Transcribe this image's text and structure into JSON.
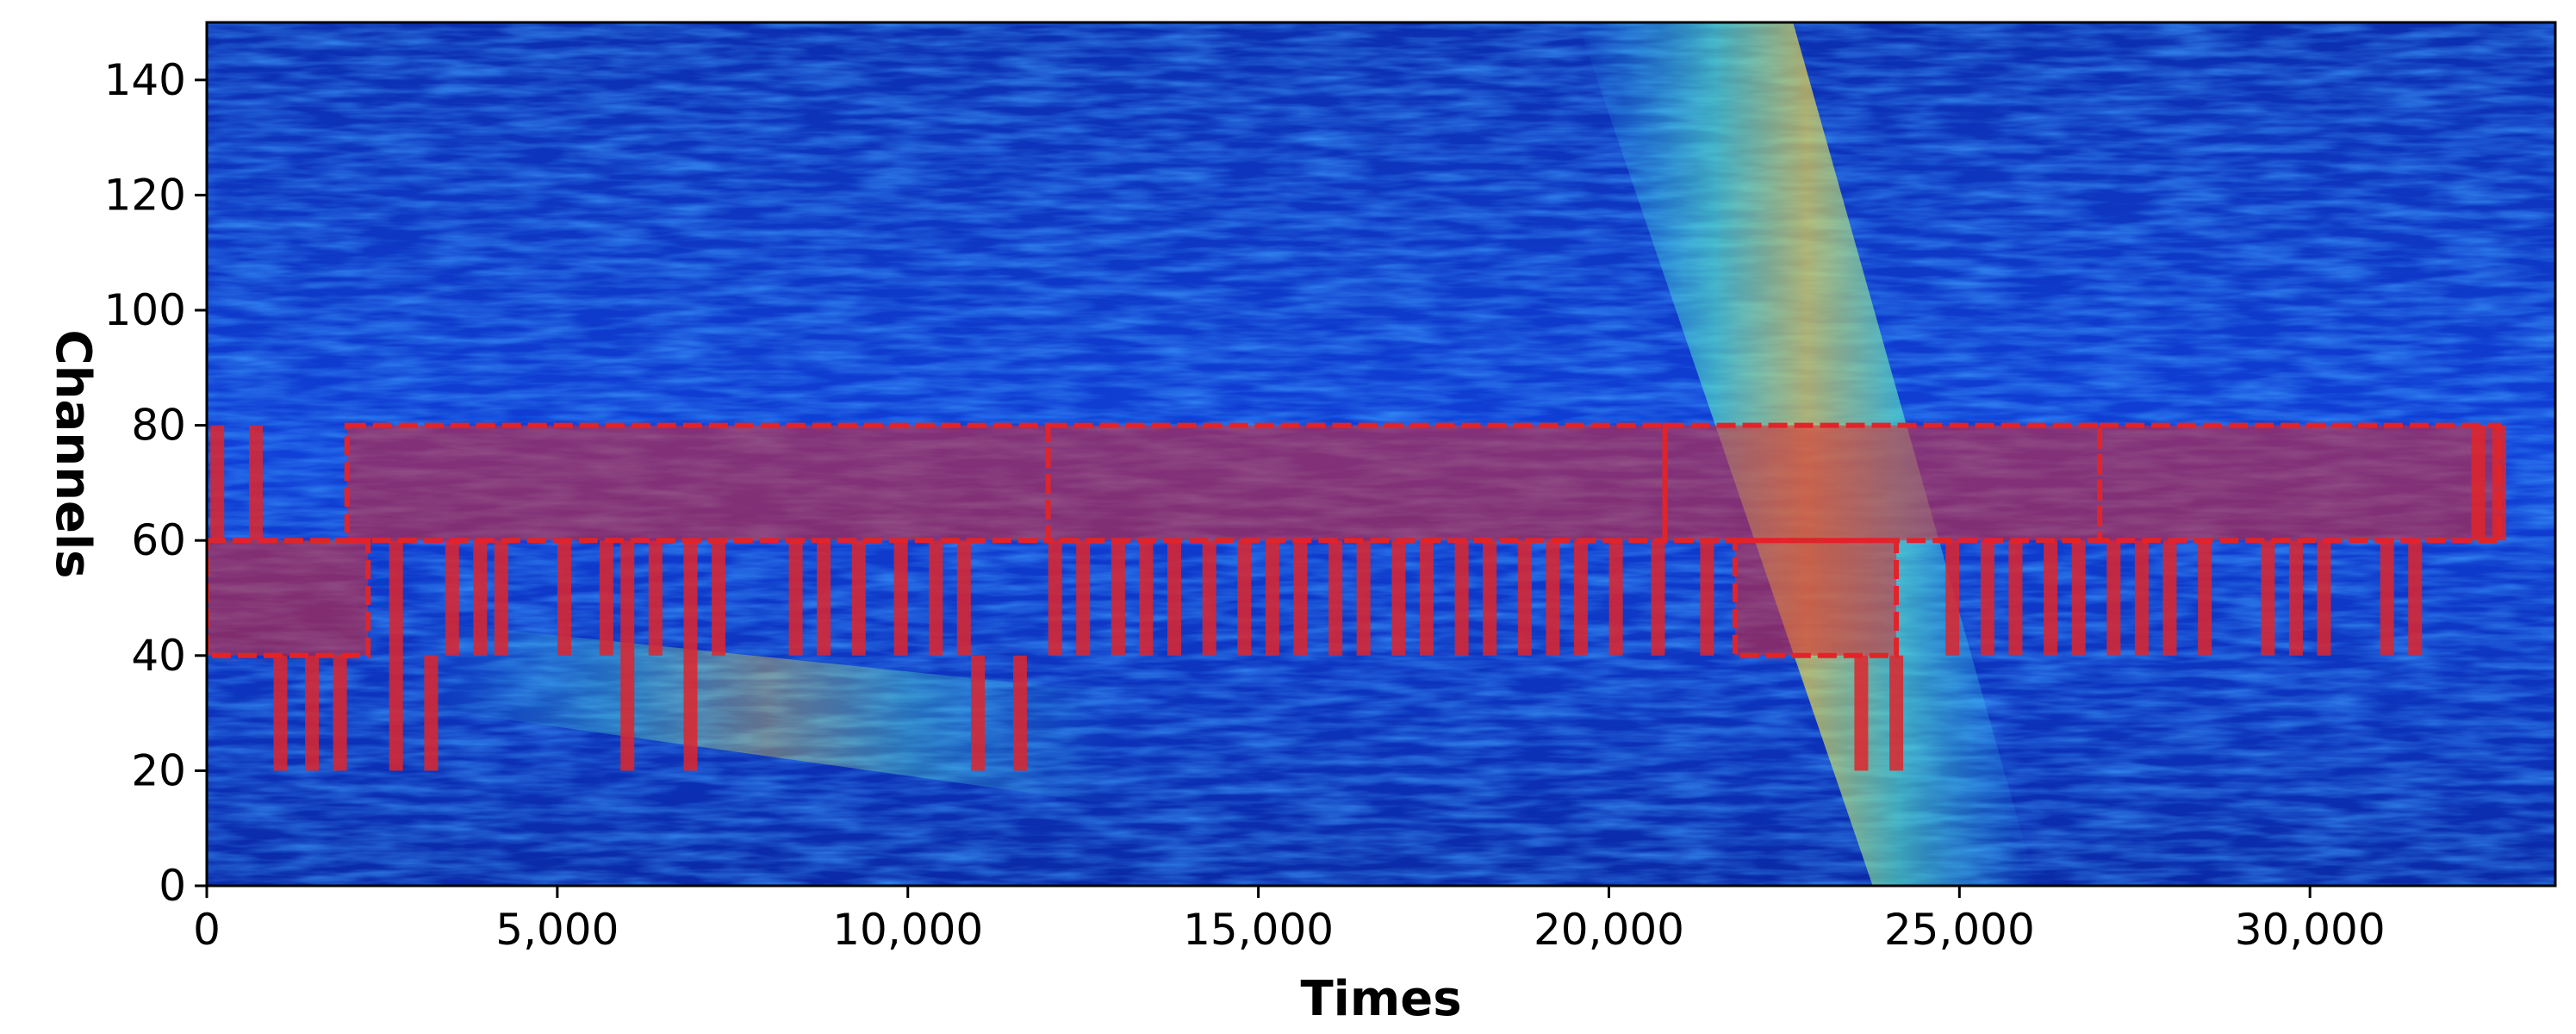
{
  "chart_data": {
    "type": "heatmap",
    "title": "",
    "xlabel": "Times",
    "ylabel": "Channels",
    "xlim": [
      0,
      33500
    ],
    "ylim": [
      0,
      150
    ],
    "x_ticks": [
      0,
      5000,
      10000,
      15000,
      20000,
      25000,
      30000
    ],
    "x_tick_labels": [
      "0",
      "5,000",
      "10,000",
      "15,000",
      "20,000",
      "25,000",
      "30,000"
    ],
    "y_ticks": [
      0,
      20,
      40,
      60,
      80,
      100,
      120,
      140
    ],
    "y_tick_labels": [
      "0",
      "20",
      "40",
      "60",
      "80",
      "100",
      "120",
      "140"
    ],
    "colormap": "jet",
    "grid": false,
    "legend": "none",
    "colors": {
      "background_low": "#0b2fb8",
      "background_mid": "#1e5cff",
      "signal_cyan": "#33d4ff",
      "signal_yellow": "#ffe640",
      "signal_red": "#d61a1a",
      "box_overlay": "#e0242a"
    },
    "signal_bands": [
      {
        "name": "",
        "x0": 19800,
        "y0": 150,
        "x1": 24500,
        "y1": 0
      },
      {
        "name": "",
        "x0": 3000,
        "y0": 40,
        "x1": 13000,
        "y1": 20
      }
    ],
    "box_overlays": [
      {
        "x0": 0,
        "x1": 2300,
        "y0": 40,
        "y1": 60
      },
      {
        "x0": 2000,
        "x1": 12000,
        "y0": 60,
        "y1": 80
      },
      {
        "x0": 12000,
        "x1": 20800,
        "y0": 60,
        "y1": 80
      },
      {
        "x0": 20800,
        "x1": 27000,
        "y0": 60,
        "y1": 80
      },
      {
        "x0": 27000,
        "x1": 32700,
        "y0": 60,
        "y1": 80
      },
      {
        "x0": 21800,
        "x1": 24100,
        "y0": 40,
        "y1": 60
      }
    ],
    "box_strips": [
      {
        "x": 150,
        "y0": 60,
        "y1": 80
      },
      {
        "x": 700,
        "y0": 60,
        "y1": 80
      },
      {
        "x": 1050,
        "y0": 20,
        "y1": 40
      },
      {
        "x": 1500,
        "y0": 20,
        "y1": 40
      },
      {
        "x": 1900,
        "y0": 20,
        "y1": 40
      },
      {
        "x": 2700,
        "y0": 20,
        "y1": 60
      },
      {
        "x": 3200,
        "y0": 20,
        "y1": 40
      },
      {
        "x": 3500,
        "y0": 40,
        "y1": 60
      },
      {
        "x": 3900,
        "y0": 40,
        "y1": 60
      },
      {
        "x": 4200,
        "y0": 40,
        "y1": 60
      },
      {
        "x": 5100,
        "y0": 40,
        "y1": 60
      },
      {
        "x": 5700,
        "y0": 40,
        "y1": 60
      },
      {
        "x": 6000,
        "y0": 20,
        "y1": 60
      },
      {
        "x": 6400,
        "y0": 40,
        "y1": 60
      },
      {
        "x": 6900,
        "y0": 20,
        "y1": 60
      },
      {
        "x": 7300,
        "y0": 40,
        "y1": 60
      },
      {
        "x": 8400,
        "y0": 40,
        "y1": 60
      },
      {
        "x": 8800,
        "y0": 40,
        "y1": 60
      },
      {
        "x": 9300,
        "y0": 40,
        "y1": 60
      },
      {
        "x": 9900,
        "y0": 40,
        "y1": 60
      },
      {
        "x": 10400,
        "y0": 40,
        "y1": 60
      },
      {
        "x": 10800,
        "y0": 40,
        "y1": 60
      },
      {
        "x": 11000,
        "y0": 20,
        "y1": 40
      },
      {
        "x": 11600,
        "y0": 20,
        "y1": 40
      },
      {
        "x": 12100,
        "y0": 40,
        "y1": 60
      },
      {
        "x": 12500,
        "y0": 40,
        "y1": 60
      },
      {
        "x": 13000,
        "y0": 40,
        "y1": 60
      },
      {
        "x": 13400,
        "y0": 40,
        "y1": 60
      },
      {
        "x": 13800,
        "y0": 40,
        "y1": 60
      },
      {
        "x": 14300,
        "y0": 40,
        "y1": 60
      },
      {
        "x": 14800,
        "y0": 40,
        "y1": 60
      },
      {
        "x": 15200,
        "y0": 40,
        "y1": 60
      },
      {
        "x": 15600,
        "y0": 40,
        "y1": 60
      },
      {
        "x": 16100,
        "y0": 40,
        "y1": 60
      },
      {
        "x": 16500,
        "y0": 40,
        "y1": 60
      },
      {
        "x": 17000,
        "y0": 40,
        "y1": 60
      },
      {
        "x": 17400,
        "y0": 40,
        "y1": 60
      },
      {
        "x": 17900,
        "y0": 40,
        "y1": 60
      },
      {
        "x": 18300,
        "y0": 40,
        "y1": 60
      },
      {
        "x": 18800,
        "y0": 40,
        "y1": 60
      },
      {
        "x": 19200,
        "y0": 40,
        "y1": 60
      },
      {
        "x": 19600,
        "y0": 40,
        "y1": 60
      },
      {
        "x": 20100,
        "y0": 40,
        "y1": 60
      },
      {
        "x": 20700,
        "y0": 40,
        "y1": 60
      },
      {
        "x": 21400,
        "y0": 40,
        "y1": 60
      },
      {
        "x": 23600,
        "y0": 20,
        "y1": 40
      },
      {
        "x": 24100,
        "y0": 20,
        "y1": 40
      },
      {
        "x": 24900,
        "y0": 40,
        "y1": 60
      },
      {
        "x": 25400,
        "y0": 40,
        "y1": 60
      },
      {
        "x": 25800,
        "y0": 40,
        "y1": 60
      },
      {
        "x": 26300,
        "y0": 40,
        "y1": 60
      },
      {
        "x": 26700,
        "y0": 40,
        "y1": 60
      },
      {
        "x": 27200,
        "y0": 40,
        "y1": 60
      },
      {
        "x": 27600,
        "y0": 40,
        "y1": 60
      },
      {
        "x": 28000,
        "y0": 40,
        "y1": 60
      },
      {
        "x": 28500,
        "y0": 40,
        "y1": 60
      },
      {
        "x": 29400,
        "y0": 40,
        "y1": 60
      },
      {
        "x": 29800,
        "y0": 40,
        "y1": 60
      },
      {
        "x": 30200,
        "y0": 40,
        "y1": 60
      },
      {
        "x": 31100,
        "y0": 40,
        "y1": 60
      },
      {
        "x": 31500,
        "y0": 40,
        "y1": 60
      },
      {
        "x": 32400,
        "y0": 60,
        "y1": 80
      },
      {
        "x": 32700,
        "y0": 60,
        "y1": 80
      }
    ]
  }
}
